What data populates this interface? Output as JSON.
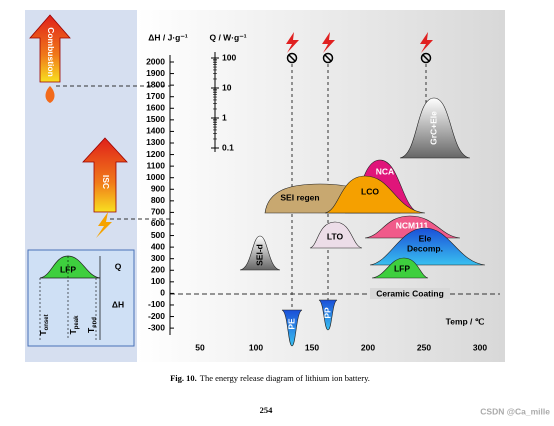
{
  "figure": {
    "y_axis_title": "ΔH / J·g⁻¹",
    "q_axis_title": "Q / W·g⁻¹",
    "x_axis_title": "Temp / ℃",
    "y_ticks": [
      2000,
      1900,
      1800,
      1700,
      1600,
      1500,
      1400,
      1300,
      1200,
      1100,
      1000,
      900,
      800,
      700,
      600,
      500,
      400,
      300,
      200,
      100,
      0,
      -100,
      -200,
      -300
    ],
    "x_ticks": [
      50,
      100,
      150,
      200,
      250,
      300
    ],
    "q_ticks": [
      100,
      10,
      1,
      0.1
    ],
    "left_labels": {
      "combustion": "Combustion",
      "isc": "ISC"
    },
    "inset": {
      "peak": "LFP",
      "q": "Q",
      "dh": "ΔH",
      "t_onset": {
        "main": "T",
        "sub": "onset"
      },
      "t_peak": {
        "main": "T",
        "sub": "peak"
      },
      "t_end": {
        "main": "T",
        "sub": "end"
      }
    },
    "peaks": {
      "sei_d": "SEI-d",
      "sei_regen": "SEI regen",
      "lco": "LCO",
      "nca": "NCA",
      "lto": "LTO",
      "ncm111": "NCM111",
      "ele_decomp": [
        "Ele",
        "Decomp."
      ],
      "lfp": "LFP",
      "grc_ele": "GrC+Ele",
      "pe": "PE",
      "pp": "PP",
      "ceramic": "Ceramic Coating"
    }
  },
  "caption": {
    "label": "Fig. 10.",
    "text": "The energy release diagram of lithium ion battery."
  },
  "page_number": "254",
  "watermark": "CSDN @Ca_mille"
}
